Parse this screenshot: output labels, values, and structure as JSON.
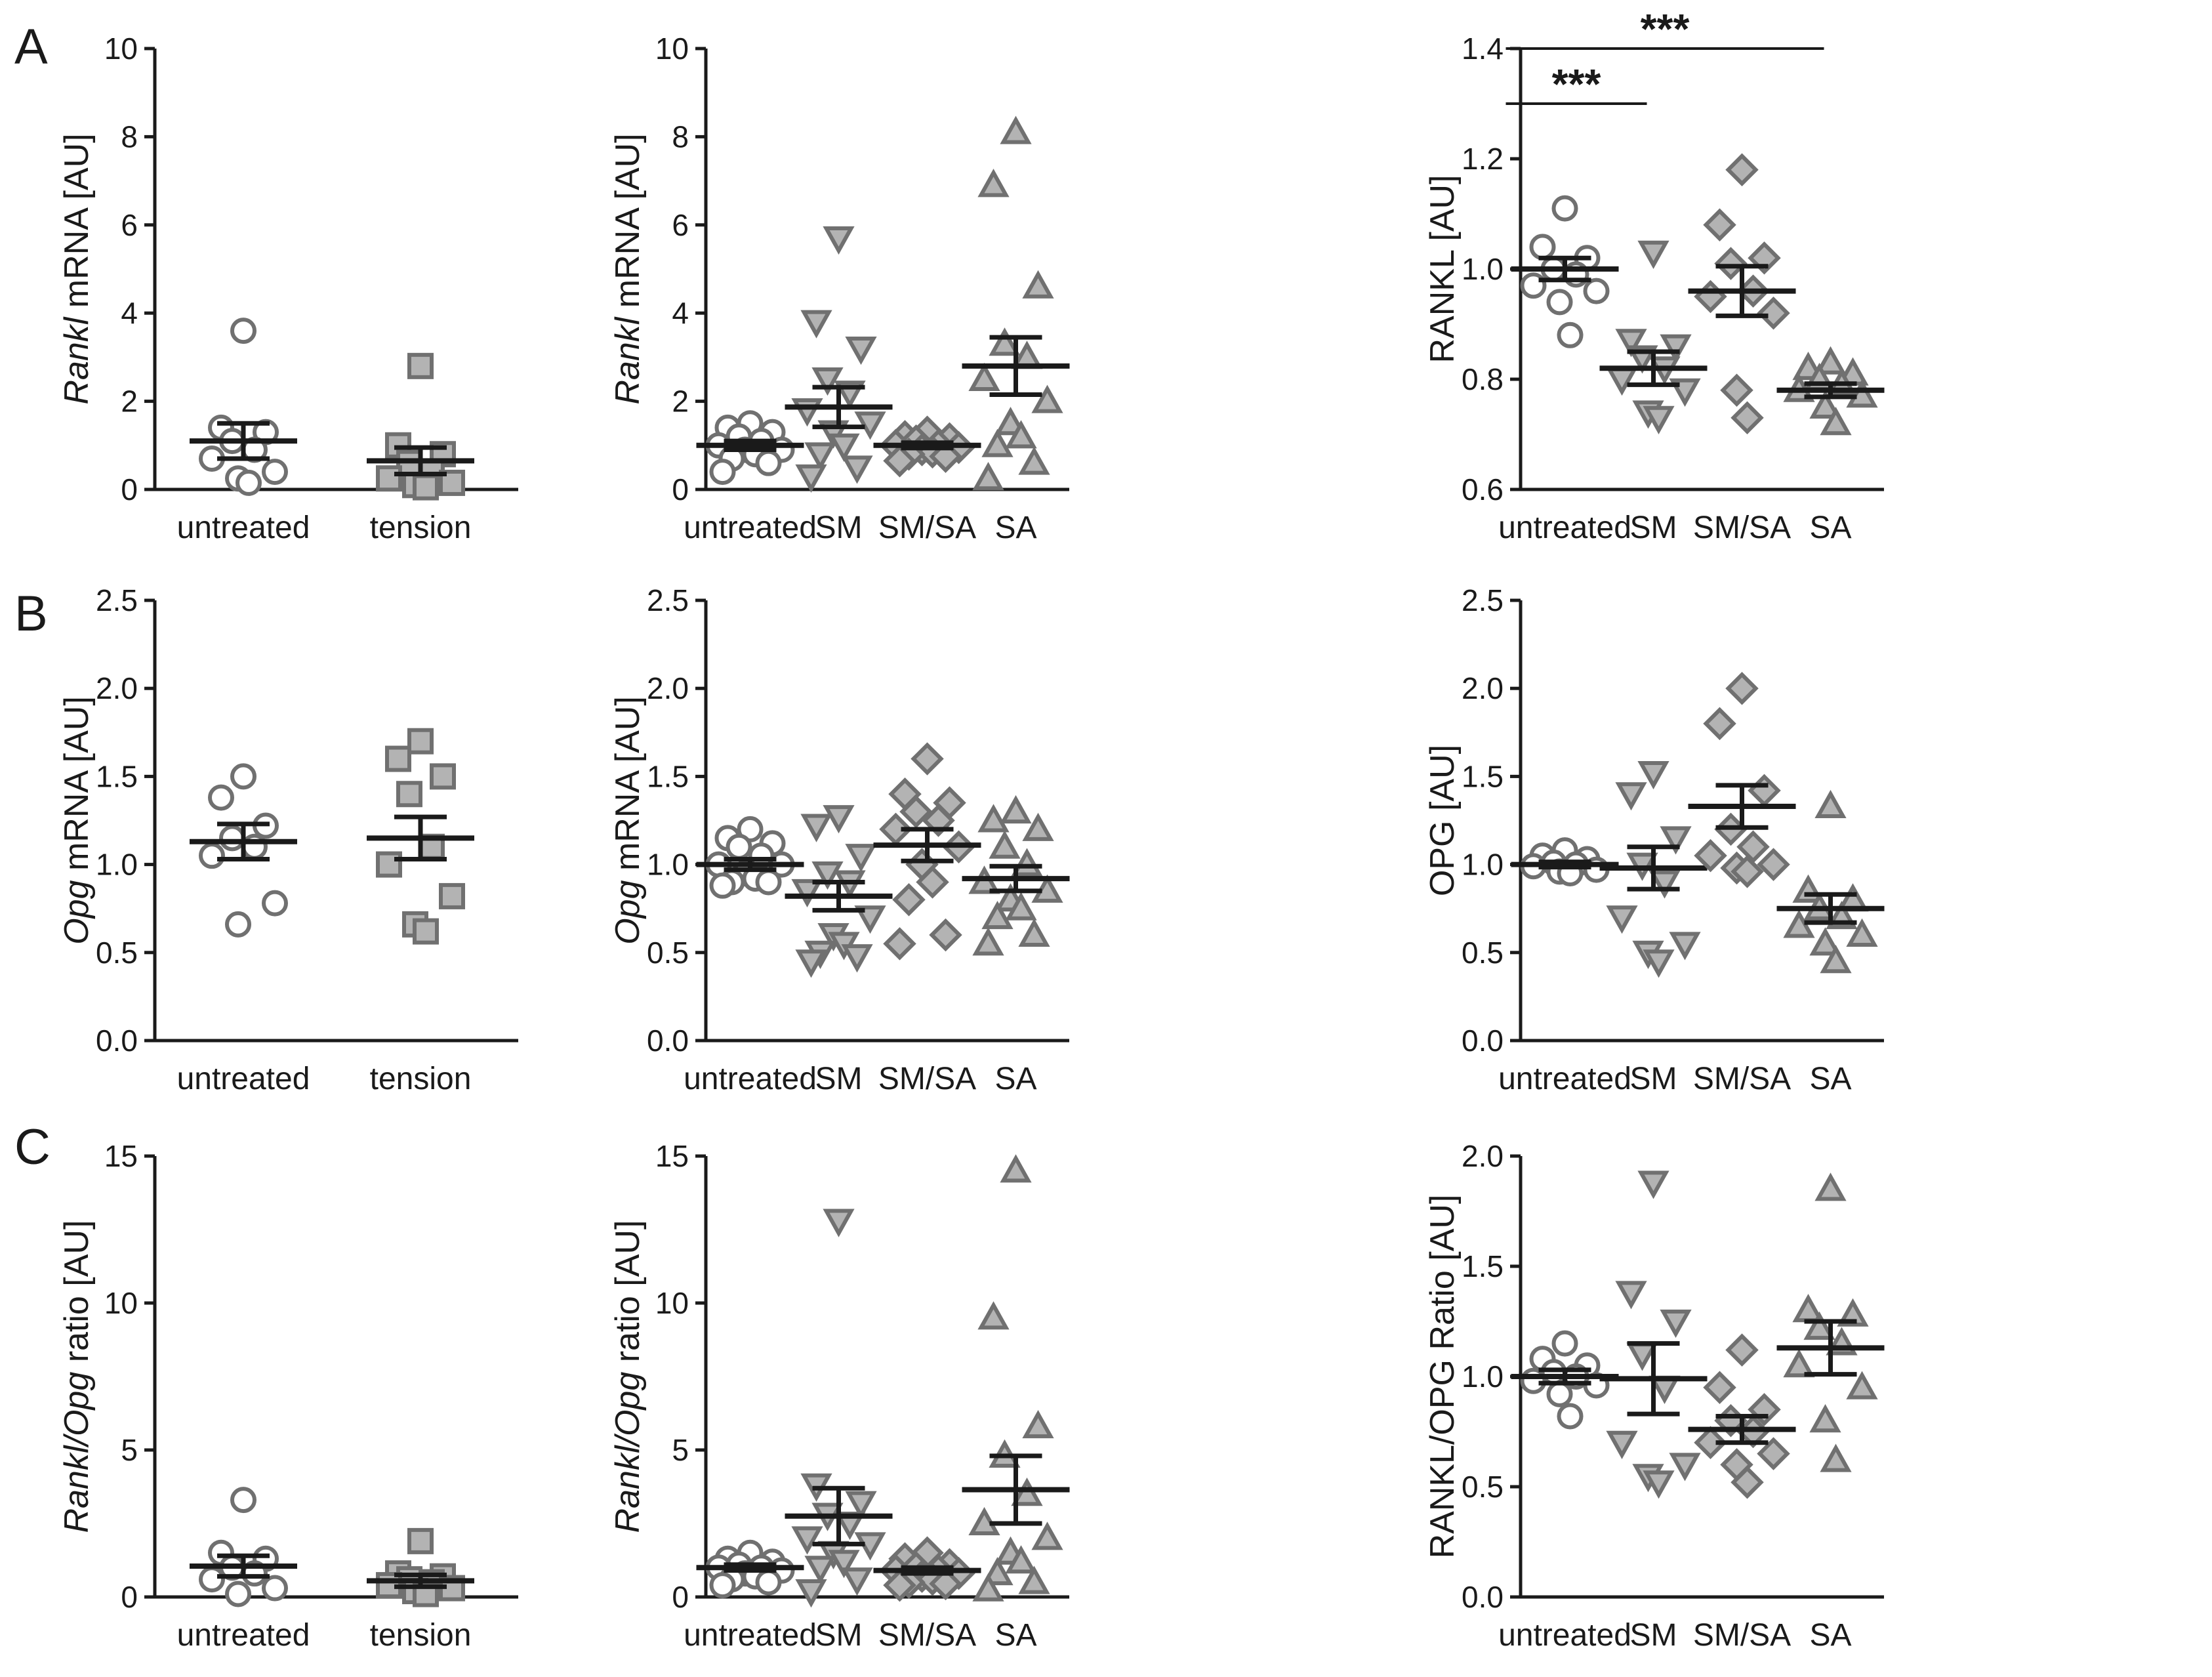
{
  "panel_labels": [
    "A",
    "B",
    "C"
  ],
  "chart_data": [
    {
      "type": "scatter",
      "row": 0,
      "col": 0,
      "ylabel": "Rankl mRNA [AU]",
      "ylabel_parts": [
        {
          "t": "Rankl",
          "i": true
        },
        {
          "t": " mRNA [AU]",
          "i": false
        }
      ],
      "ylim": [
        0,
        10
      ],
      "yticks": [
        0,
        2,
        4,
        6,
        8,
        10
      ],
      "ytick_labels": [
        "0",
        "2",
        "4",
        "6",
        "8",
        "10"
      ],
      "categories": [
        "untreated",
        "tension"
      ],
      "series": [
        {
          "name": "untreated",
          "marker": "circle-open",
          "values": [
            3.6,
            1.4,
            1.3,
            1.1,
            0.9,
            0.7,
            0.4,
            0.25,
            0.15
          ],
          "mean": 1.1,
          "sem": 0.4
        },
        {
          "name": "tension",
          "marker": "square",
          "values": [
            2.8,
            1.0,
            0.8,
            0.6,
            0.4,
            0.25,
            0.15,
            0.1,
            0.05
          ],
          "mean": 0.65,
          "sem": 0.3
        }
      ]
    },
    {
      "type": "scatter",
      "row": 0,
      "col": 1,
      "ylabel": "Rankl mRNA [AU]",
      "ylabel_parts": [
        {
          "t": "Rankl",
          "i": true
        },
        {
          "t": " mRNA [AU]",
          "i": false
        }
      ],
      "ylim": [
        0,
        10
      ],
      "yticks": [
        0,
        2,
        4,
        6,
        8,
        10
      ],
      "ytick_labels": [
        "0",
        "2",
        "4",
        "6",
        "8",
        "10"
      ],
      "categories": [
        "untreated",
        "SM",
        "SM/SA",
        "SA"
      ],
      "series": [
        {
          "name": "untreated",
          "marker": "circle-open",
          "values": [
            1.5,
            1.4,
            1.3,
            1.2,
            1.1,
            1.0,
            0.9,
            0.9,
            0.8,
            0.7,
            0.6,
            0.4
          ],
          "mean": 1.0,
          "sem": 0.1
        },
        {
          "name": "SM",
          "marker": "tri-down",
          "values": [
            5.7,
            3.8,
            3.2,
            2.5,
            2.2,
            1.8,
            1.5,
            1.3,
            1.0,
            0.8,
            0.5,
            0.3
          ],
          "mean": 1.87,
          "sem": 0.45
        },
        {
          "name": "SM/SA",
          "marker": "diamond",
          "values": [
            1.3,
            1.2,
            1.15,
            1.1,
            1.0,
            1.0,
            0.95,
            0.9,
            0.85,
            0.8,
            0.75,
            0.65
          ],
          "mean": 1.0,
          "sem": 0.06
        },
        {
          "name": "SA",
          "marker": "tri-up",
          "values": [
            8.1,
            6.9,
            4.6,
            3.3,
            3.0,
            2.5,
            2.0,
            1.5,
            1.2,
            1.0,
            0.6,
            0.25
          ],
          "mean": 2.8,
          "sem": 0.65
        }
      ]
    },
    {
      "type": "scatter",
      "row": 0,
      "col": 2,
      "ylabel": "RANKL [AU]",
      "ylabel_parts": [
        {
          "t": "RANKL [AU]",
          "i": false
        }
      ],
      "ylim": [
        0.6,
        1.4
      ],
      "yticks": [
        0.6,
        0.8,
        1.0,
        1.2,
        1.4
      ],
      "ytick_labels": [
        "0.6",
        "0.8",
        "1.0",
        "1.2",
        "1.4"
      ],
      "categories": [
        "untreated",
        "SM",
        "SM/SA",
        "SA"
      ],
      "series": [
        {
          "name": "untreated",
          "marker": "circle-open",
          "values": [
            1.11,
            1.04,
            1.02,
            1.0,
            0.99,
            0.97,
            0.96,
            0.94,
            0.88
          ],
          "mean": 1.0,
          "sem": 0.02
        },
        {
          "name": "SM",
          "marker": "tri-down",
          "values": [
            1.03,
            0.87,
            0.86,
            0.84,
            0.82,
            0.8,
            0.78,
            0.74,
            0.73
          ],
          "mean": 0.82,
          "sem": 0.03
        },
        {
          "name": "SM/SA",
          "marker": "diamond",
          "values": [
            1.18,
            1.08,
            1.02,
            1.01,
            0.96,
            0.95,
            0.92,
            0.78,
            0.73
          ],
          "mean": 0.96,
          "sem": 0.045
        },
        {
          "name": "SA",
          "marker": "tri-up",
          "values": [
            0.83,
            0.82,
            0.81,
            0.8,
            0.79,
            0.78,
            0.77,
            0.75,
            0.72
          ],
          "mean": 0.78,
          "sem": 0.012
        }
      ],
      "significance": [
        {
          "from": 0,
          "to": 1,
          "label": "***",
          "level": 1.3
        },
        {
          "from": 0,
          "to": 3,
          "label": "***",
          "level": 1.4
        }
      ]
    },
    {
      "type": "scatter",
      "row": 1,
      "col": 0,
      "ylabel": "Opg mRNA [AU]",
      "ylabel_parts": [
        {
          "t": "Opg",
          "i": true
        },
        {
          "t": " mRNA [AU]",
          "i": false
        }
      ],
      "ylim": [
        0,
        2.5
      ],
      "yticks": [
        0,
        0.5,
        1.0,
        1.5,
        2.0,
        2.5
      ],
      "ytick_labels": [
        "0.0",
        "0.5",
        "1.0",
        "1.5",
        "2.0",
        "2.5"
      ],
      "categories": [
        "untreated",
        "tension"
      ],
      "series": [
        {
          "name": "untreated",
          "marker": "circle-open",
          "values": [
            1.5,
            1.38,
            1.22,
            1.15,
            1.1,
            1.05,
            0.78,
            0.66
          ],
          "mean": 1.13,
          "sem": 0.1
        },
        {
          "name": "tension",
          "marker": "square",
          "values": [
            1.7,
            1.6,
            1.5,
            1.4,
            1.1,
            1.0,
            0.82,
            0.66,
            0.62
          ],
          "mean": 1.15,
          "sem": 0.12
        }
      ]
    },
    {
      "type": "scatter",
      "row": 1,
      "col": 1,
      "ylabel": "Opg mRNA [AU]",
      "ylabel_parts": [
        {
          "t": "Opg",
          "i": true
        },
        {
          "t": " mRNA [AU]",
          "i": false
        }
      ],
      "ylim": [
        0,
        2.5
      ],
      "yticks": [
        0,
        0.5,
        1.0,
        1.5,
        2.0,
        2.5
      ],
      "ytick_labels": [
        "0.0",
        "0.5",
        "1.0",
        "1.5",
        "2.0",
        "2.5"
      ],
      "categories": [
        "untreated",
        "SM",
        "SM/SA",
        "SA"
      ],
      "series": [
        {
          "name": "untreated",
          "marker": "circle-open",
          "values": [
            1.2,
            1.15,
            1.12,
            1.1,
            1.05,
            1.0,
            1.0,
            0.95,
            0.92,
            0.9,
            0.9,
            0.88
          ],
          "mean": 1.0,
          "sem": 0.03
        },
        {
          "name": "SM",
          "marker": "tri-down",
          "values": [
            1.27,
            1.22,
            1.05,
            0.95,
            0.9,
            0.85,
            0.7,
            0.6,
            0.55,
            0.5,
            0.48,
            0.45
          ],
          "mean": 0.82,
          "sem": 0.08
        },
        {
          "name": "SM/SA",
          "marker": "diamond",
          "values": [
            1.6,
            1.4,
            1.35,
            1.3,
            1.25,
            1.2,
            1.1,
            1.0,
            0.9,
            0.8,
            0.6,
            0.55
          ],
          "mean": 1.11,
          "sem": 0.09
        },
        {
          "name": "SA",
          "marker": "tri-up",
          "values": [
            1.3,
            1.25,
            1.2,
            1.1,
            1.0,
            0.9,
            0.85,
            0.8,
            0.75,
            0.7,
            0.6,
            0.55
          ],
          "mean": 0.92,
          "sem": 0.07
        }
      ]
    },
    {
      "type": "scatter",
      "row": 1,
      "col": 2,
      "ylabel": "OPG [AU]",
      "ylabel_parts": [
        {
          "t": "OPG [AU]",
          "i": false
        }
      ],
      "ylim": [
        0,
        2.5
      ],
      "yticks": [
        0,
        0.5,
        1.0,
        1.5,
        2.0,
        2.5
      ],
      "ytick_labels": [
        "0.0",
        "0.5",
        "1.0",
        "1.5",
        "2.0",
        "2.5"
      ],
      "categories": [
        "untreated",
        "SM",
        "SM/SA",
        "SA"
      ],
      "series": [
        {
          "name": "untreated",
          "marker": "circle-open",
          "values": [
            1.08,
            1.05,
            1.03,
            1.01,
            1.0,
            0.99,
            0.97,
            0.96,
            0.95
          ],
          "mean": 1.0,
          "sem": 0.015
        },
        {
          "name": "SM",
          "marker": "tri-down",
          "values": [
            1.52,
            1.4,
            1.15,
            1.0,
            0.9,
            0.7,
            0.55,
            0.5,
            0.45
          ],
          "mean": 0.98,
          "sem": 0.12
        },
        {
          "name": "SM/SA",
          "marker": "diamond",
          "values": [
            2.0,
            1.8,
            1.42,
            1.2,
            1.1,
            1.05,
            1.0,
            0.98,
            0.96
          ],
          "mean": 1.33,
          "sem": 0.12
        },
        {
          "name": "SA",
          "marker": "tri-up",
          "values": [
            1.33,
            0.85,
            0.8,
            0.75,
            0.7,
            0.65,
            0.6,
            0.55,
            0.45
          ],
          "mean": 0.75,
          "sem": 0.08
        }
      ]
    },
    {
      "type": "scatter",
      "row": 2,
      "col": 0,
      "ylabel": "Rankl/Opg ratio [AU]",
      "ylabel_parts": [
        {
          "t": "Rankl/Opg",
          "i": true
        },
        {
          "t": " ratio [AU]",
          "i": false
        }
      ],
      "ylim": [
        0,
        15
      ],
      "yticks": [
        0,
        5,
        10,
        15
      ],
      "ytick_labels": [
        "0",
        "5",
        "10",
        "15"
      ],
      "categories": [
        "untreated",
        "tension"
      ],
      "series": [
        {
          "name": "untreated",
          "marker": "circle-open",
          "values": [
            3.3,
            1.5,
            1.3,
            1.0,
            0.8,
            0.6,
            0.3,
            0.1
          ],
          "mean": 1.05,
          "sem": 0.35
        },
        {
          "name": "tension",
          "marker": "square",
          "values": [
            1.9,
            0.8,
            0.7,
            0.6,
            0.5,
            0.4,
            0.3,
            0.2,
            0.1
          ],
          "mean": 0.55,
          "sem": 0.2
        }
      ]
    },
    {
      "type": "scatter",
      "row": 2,
      "col": 1,
      "ylabel": "Rankl/Opg ratio [AU]",
      "ylabel_parts": [
        {
          "t": "Rankl/Opg",
          "i": true
        },
        {
          "t": " ratio [AU]",
          "i": false
        }
      ],
      "ylim": [
        0,
        15
      ],
      "yticks": [
        0,
        5,
        10,
        15
      ],
      "ytick_labels": [
        "0",
        "5",
        "10",
        "15"
      ],
      "categories": [
        "untreated",
        "SM",
        "SM/SA",
        "SA"
      ],
      "series": [
        {
          "name": "untreated",
          "marker": "circle-open",
          "values": [
            1.5,
            1.3,
            1.2,
            1.1,
            1.0,
            1.0,
            0.9,
            0.8,
            0.7,
            0.6,
            0.5,
            0.4
          ],
          "mean": 1.0,
          "sem": 0.1
        },
        {
          "name": "SM",
          "marker": "tri-down",
          "values": [
            12.8,
            3.8,
            3.2,
            2.8,
            2.5,
            2.0,
            1.8,
            1.5,
            1.2,
            1.0,
            0.6,
            0.2
          ],
          "mean": 2.75,
          "sem": 0.95
        },
        {
          "name": "SM/SA",
          "marker": "diamond",
          "values": [
            1.5,
            1.3,
            1.1,
            1.0,
            0.9,
            0.9,
            0.8,
            0.7,
            0.6,
            0.5,
            0.45,
            0.4
          ],
          "mean": 0.9,
          "sem": 0.1
        },
        {
          "name": "SA",
          "marker": "tri-up",
          "values": [
            14.5,
            9.5,
            5.8,
            4.8,
            3.5,
            2.5,
            2.0,
            1.5,
            1.2,
            0.8,
            0.5,
            0.25
          ],
          "mean": 3.65,
          "sem": 1.15
        }
      ]
    },
    {
      "type": "scatter",
      "row": 2,
      "col": 2,
      "ylabel": "RANKL/OPG Ratio [AU]",
      "ylabel_parts": [
        {
          "t": "RANKL/OPG Ratio [AU]",
          "i": false
        }
      ],
      "ylim": [
        0,
        2.0
      ],
      "yticks": [
        0,
        0.5,
        1.0,
        1.5,
        2.0
      ],
      "ytick_labels": [
        "0.0",
        "0.5",
        "1.0",
        "1.5",
        "2.0"
      ],
      "categories": [
        "untreated",
        "SM",
        "SM/SA",
        "SA"
      ],
      "series": [
        {
          "name": "untreated",
          "marker": "circle-open",
          "values": [
            1.15,
            1.08,
            1.05,
            1.02,
            1.0,
            0.98,
            0.96,
            0.92,
            0.82
          ],
          "mean": 1.0,
          "sem": 0.03
        },
        {
          "name": "SM",
          "marker": "tri-down",
          "values": [
            1.88,
            1.38,
            1.25,
            1.1,
            0.95,
            0.7,
            0.6,
            0.55,
            0.52
          ],
          "mean": 0.99,
          "sem": 0.16
        },
        {
          "name": "SM/SA",
          "marker": "diamond",
          "values": [
            1.12,
            0.95,
            0.85,
            0.8,
            0.75,
            0.7,
            0.65,
            0.6,
            0.52
          ],
          "mean": 0.76,
          "sem": 0.06
        },
        {
          "name": "SA",
          "marker": "tri-up",
          "values": [
            1.85,
            1.3,
            1.28,
            1.22,
            1.15,
            1.05,
            0.95,
            0.8,
            0.62
          ],
          "mean": 1.13,
          "sem": 0.12
        }
      ]
    }
  ]
}
